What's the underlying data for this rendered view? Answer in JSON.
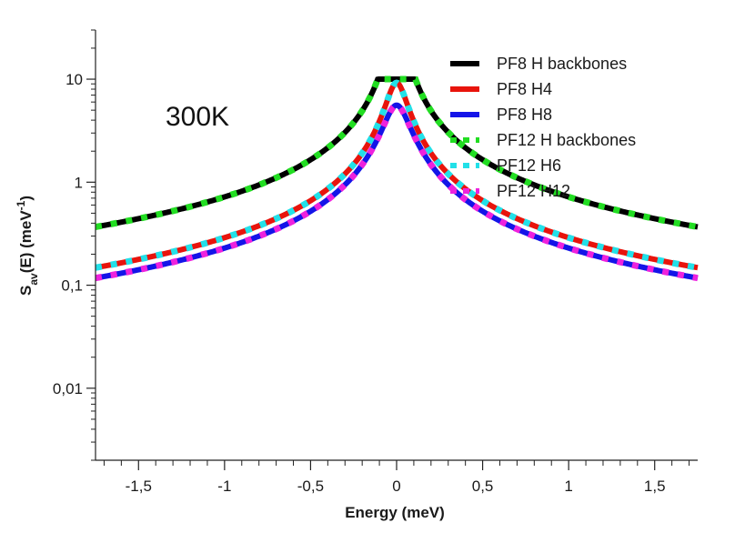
{
  "chart_data": {
    "type": "line",
    "title": "",
    "annotation": "300K",
    "xlabel": "Energy (meV)",
    "ylabel_main": "S",
    "ylabel_sub": "av",
    "ylabel_mid": "(E)  (meV",
    "ylabel_sup": "-1",
    "ylabel_end": ")",
    "xlim": [
      -1.75,
      1.75
    ],
    "ylim": [
      0.002,
      30
    ],
    "yscale": "log",
    "x_ticks": [
      -1.5,
      -1,
      -0.5,
      0,
      0.5,
      1,
      1.5
    ],
    "x_tick_labels": [
      "-1,5",
      "-1",
      "-0,5",
      "0",
      "0,5",
      "1",
      "1,5"
    ],
    "y_ticks": [
      0.01,
      0.1,
      1,
      10
    ],
    "y_tick_labels": [
      "0,01",
      "0,1",
      "1",
      "10"
    ],
    "legend_position": "top-right",
    "series": [
      {
        "name": "PF8 H backbones",
        "color": "#000000",
        "style": "solid",
        "A": 0.72,
        "gamma": 0.021,
        "p": 0.6
      },
      {
        "name": "PF8 H4",
        "color": "#e8140c",
        "style": "solid",
        "A": 0.29,
        "gamma": 0.056,
        "p": 0.6
      },
      {
        "name": "PF8 H8",
        "color": "#1414e8",
        "style": "solid",
        "A": 0.23,
        "gamma": 0.07,
        "p": 0.6
      },
      {
        "name": "PF12 H backbones",
        "color": "#22dd22",
        "style": "dotted",
        "A": 0.72,
        "gamma": 0.021,
        "p": 0.6
      },
      {
        "name": "PF12 H6",
        "color": "#22e0e8",
        "style": "dotted",
        "A": 0.29,
        "gamma": 0.056,
        "p": 0.6
      },
      {
        "name": "PF12 H12",
        "color": "#ee22dd",
        "style": "dotted",
        "A": 0.23,
        "gamma": 0.07,
        "p": 0.6
      }
    ]
  }
}
